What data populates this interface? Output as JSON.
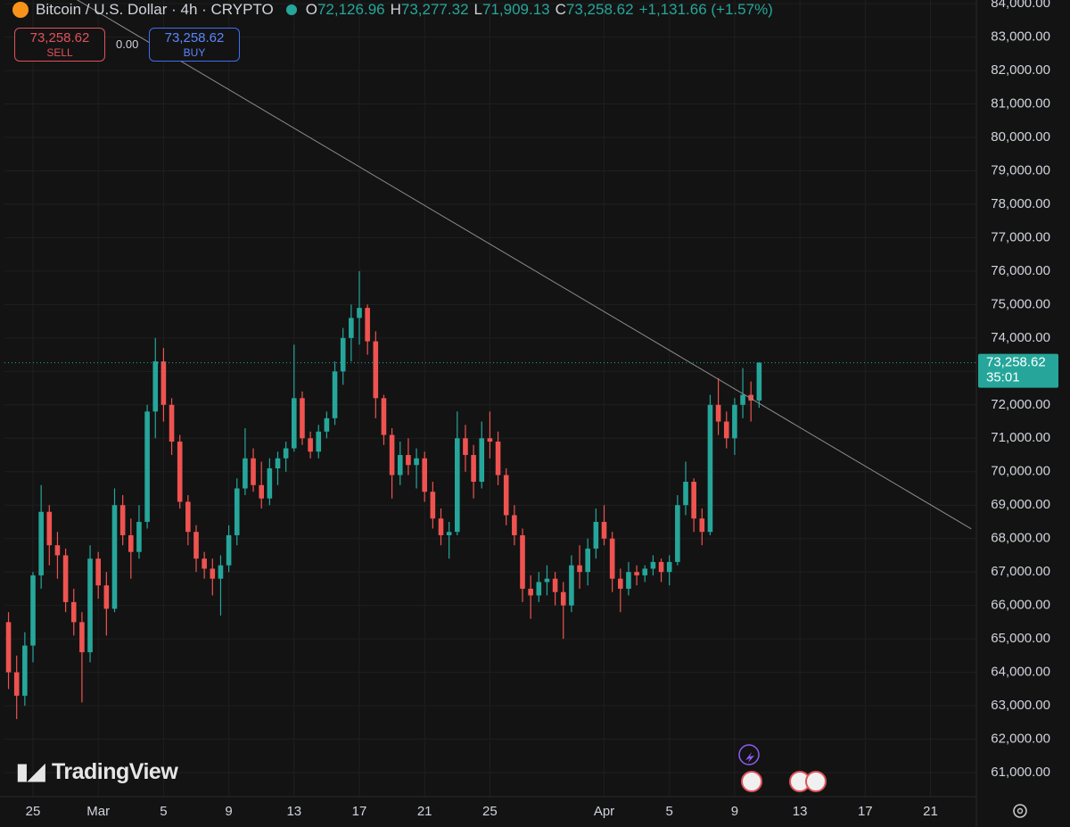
{
  "header": {
    "symbol": "Bitcoin / U.S. Dollar · 4h · CRYPTO",
    "ohlc": [
      {
        "label": "O",
        "value": "72,126.96"
      },
      {
        "label": "H",
        "value": "73,277.32"
      },
      {
        "label": "L",
        "value": "71,909.13"
      },
      {
        "label": "C",
        "value": "73,258.62"
      }
    ],
    "change": "+1,131.66 (+1.57%)"
  },
  "trade": {
    "sell_price": "73,258.62",
    "sell": "SELL",
    "spread": "0.00",
    "buy_price": "73,258.62",
    "buy": "BUY"
  },
  "logo": "TradingView",
  "chart_data": {
    "type": "candlestick",
    "categories": [
      null,
      null,
      null,
      "25",
      null,
      null,
      null,
      null,
      null,
      null,
      null,
      "Mar",
      null,
      null,
      null,
      null,
      null,
      null,
      null,
      "5",
      null,
      null,
      null,
      null,
      null,
      null,
      null,
      "9",
      null,
      null,
      null,
      null,
      null,
      null,
      null,
      "13",
      null,
      null,
      null,
      null,
      null,
      null,
      null,
      "17",
      null,
      null,
      null,
      null,
      null,
      null,
      null,
      "21",
      null,
      null,
      null,
      null,
      null,
      null,
      null,
      "25",
      null,
      null,
      null,
      null,
      null,
      null,
      null,
      null,
      null,
      null,
      null,
      null,
      null,
      "Apr",
      null,
      null,
      null,
      null,
      null,
      null,
      null,
      "5",
      null,
      null,
      null,
      null,
      null,
      null,
      null,
      "9",
      null,
      null,
      null,
      null,
      null,
      null,
      null,
      "13",
      null,
      null,
      null,
      null,
      null,
      null,
      null,
      "17",
      null,
      null,
      null,
      null,
      null,
      null,
      null,
      "21",
      null,
      null,
      null,
      null,
      null
    ],
    "open": [
      65500,
      64000,
      63300,
      64800,
      66900,
      68800,
      67800,
      67500,
      66100,
      65500,
      64600,
      67400,
      66600,
      65900,
      69000,
      68100,
      67600,
      68500,
      71800,
      73300,
      72000,
      70900,
      69100,
      68200,
      67400,
      67100,
      66800,
      67200,
      68100,
      69500,
      70400,
      69600,
      69200,
      70100,
      70400,
      70700,
      72200,
      71000,
      70600,
      71200,
      71600,
      73000,
      74000,
      74600,
      74900,
      73900,
      72200,
      71100,
      69900,
      70500,
      70200,
      70400,
      69400,
      68600,
      68100,
      68200,
      71000,
      70500,
      69700,
      71000,
      70900,
      69900,
      68700,
      68100,
      66500,
      66300,
      66700,
      66800,
      66400,
      66000,
      67200,
      67000,
      67700,
      68500,
      68000,
      66800,
      66500,
      67000,
      66900,
      67100,
      67300,
      67000,
      67300,
      69000,
      69700,
      68600,
      68200,
      72000,
      71500,
      71000,
      72000,
      72300,
      72126.96,
      null,
      null,
      null,
      null,
      null,
      null,
      null,
      null,
      null,
      null,
      null,
      null,
      null,
      null,
      null,
      null,
      null,
      null,
      null,
      null,
      null,
      null,
      null,
      null,
      null,
      null
    ],
    "high": [
      65800,
      64500,
      65200,
      67000,
      69600,
      69000,
      68200,
      67700,
      66500,
      65800,
      67800,
      67600,
      67000,
      69500,
      69300,
      68600,
      69000,
      72000,
      74000,
      73700,
      72200,
      71100,
      69300,
      68400,
      67600,
      67400,
      67500,
      68400,
      69800,
      71300,
      70700,
      70300,
      70400,
      70600,
      70900,
      73800,
      72400,
      71200,
      71400,
      71800,
      73300,
      74300,
      75000,
      76000,
      75000,
      74200,
      72300,
      71300,
      70900,
      71000,
      70700,
      70600,
      69700,
      68900,
      68500,
      71800,
      71400,
      70800,
      71500,
      71800,
      71200,
      70100,
      69000,
      68300,
      66900,
      67000,
      67200,
      67000,
      66700,
      67500,
      67800,
      68000,
      68900,
      69000,
      68200,
      67100,
      67300,
      67200,
      67200,
      67500,
      67400,
      67500,
      69300,
      70300,
      69800,
      68900,
      72300,
      72800,
      71800,
      72200,
      73100,
      72700,
      73277.32,
      null,
      null,
      null,
      null,
      null,
      null,
      null,
      null,
      null,
      null,
      null,
      null,
      null,
      null,
      null,
      null,
      null,
      null,
      null,
      null,
      null,
      null,
      null,
      null,
      null,
      null
    ],
    "low": [
      63500,
      62600,
      63000,
      64300,
      66500,
      67200,
      66800,
      65800,
      65100,
      63100,
      64300,
      66200,
      65100,
      65800,
      67800,
      66800,
      67400,
      68300,
      71000,
      71500,
      70500,
      68900,
      67800,
      67000,
      66800,
      66300,
      65700,
      67000,
      67800,
      69300,
      69400,
      68900,
      69000,
      69600,
      70000,
      70600,
      70800,
      70400,
      70400,
      71000,
      71400,
      72600,
      73300,
      73800,
      73500,
      71600,
      70800,
      69200,
      69600,
      69900,
      69500,
      69100,
      68300,
      67800,
      67400,
      68100,
      70000,
      69200,
      69500,
      70400,
      69600,
      68400,
      67800,
      66100,
      65600,
      66100,
      66300,
      66000,
      65000,
      65800,
      66500,
      66600,
      67400,
      67800,
      66400,
      65800,
      66300,
      66600,
      66700,
      66900,
      66700,
      66600,
      67200,
      68700,
      68200,
      67800,
      68100,
      71100,
      70700,
      70500,
      71600,
      71500,
      71909.13,
      null,
      null,
      null,
      null,
      null,
      null,
      null,
      null,
      null,
      null,
      null,
      null,
      null,
      null,
      null,
      null,
      null,
      null,
      null,
      null,
      null,
      null,
      null,
      null,
      null,
      null
    ],
    "close": [
      64000,
      63300,
      64800,
      66900,
      68800,
      67800,
      67500,
      66100,
      65500,
      64600,
      67400,
      66600,
      65900,
      69000,
      68100,
      67600,
      68500,
      71800,
      73300,
      72000,
      70900,
      69100,
      68200,
      67400,
      67100,
      66800,
      67200,
      68100,
      69500,
      70400,
      69600,
      69200,
      70100,
      70400,
      70700,
      72200,
      71000,
      70600,
      71200,
      71600,
      73000,
      74000,
      74600,
      74900,
      73900,
      72200,
      71100,
      69900,
      70500,
      70200,
      70400,
      69400,
      68600,
      68100,
      68200,
      71000,
      70500,
      69700,
      71000,
      70900,
      69900,
      68700,
      68100,
      66500,
      66300,
      66700,
      66800,
      66400,
      66000,
      67200,
      67000,
      67700,
      68500,
      68000,
      66800,
      66500,
      67000,
      66900,
      67100,
      67300,
      67000,
      67300,
      69000,
      69700,
      68600,
      68200,
      72000,
      71500,
      71000,
      72000,
      72300,
      72126.96,
      73258.62,
      null,
      null,
      null,
      null,
      null,
      null,
      null,
      null,
      null,
      null,
      null,
      null,
      null,
      null,
      null,
      null,
      null,
      null,
      null,
      null,
      null,
      null,
      null,
      null,
      null,
      null
    ],
    "up_color": "#26a69a",
    "down_color": "#ef5350",
    "ylim": [
      60280,
      84110
    ],
    "yticks": [
      {
        "value": 61000,
        "label": "61,000.00"
      },
      {
        "value": 62000,
        "label": "62,000.00"
      },
      {
        "value": 63000,
        "label": "63,000.00"
      },
      {
        "value": 64000,
        "label": "64,000.00"
      },
      {
        "value": 65000,
        "label": "65,000.00"
      },
      {
        "value": 66000,
        "label": "66,000.00"
      },
      {
        "value": 67000,
        "label": "67,000.00"
      },
      {
        "value": 68000,
        "label": "68,000.00"
      },
      {
        "value": 69000,
        "label": "69,000.00"
      },
      {
        "value": 70000,
        "label": "70,000.00"
      },
      {
        "value": 71000,
        "label": "71,000.00"
      },
      {
        "value": 72000,
        "label": "72,000.00"
      },
      {
        "value": 73000,
        "label": "73,000.00"
      },
      {
        "value": 74000,
        "label": "74,000.00"
      },
      {
        "value": 75000,
        "label": "75,000.00"
      },
      {
        "value": 76000,
        "label": "76,000.00"
      },
      {
        "value": 77000,
        "label": "77,000.00"
      },
      {
        "value": 78000,
        "label": "78,000.00"
      },
      {
        "value": 79000,
        "label": "79,000.00"
      },
      {
        "value": 80000,
        "label": "80,000.00"
      },
      {
        "value": 81000,
        "label": "81,000.00"
      },
      {
        "value": 82000,
        "label": "82,000.00"
      },
      {
        "value": 83000,
        "label": "83,000.00"
      },
      {
        "value": 84000,
        "label": "84,000.00"
      }
    ],
    "grid": true,
    "trend_line": {
      "values": [
        85330,
        68290
      ],
      "color": "#8c8c8c"
    },
    "last_price": {
      "value": 73258.62,
      "label": "73,258.62"
    },
    "countdown": "35:01"
  }
}
